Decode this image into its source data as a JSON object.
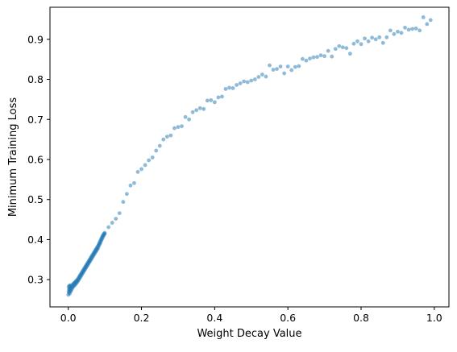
{
  "chart_data": {
    "type": "scatter",
    "title": "",
    "xlabel": "Weight Decay Value",
    "ylabel": "Minimum Training Loss",
    "xlim": [
      -0.05,
      1.04
    ],
    "ylim": [
      0.232,
      0.98
    ],
    "xticks": [
      0.0,
      0.2,
      0.4,
      0.6,
      0.8,
      1.0
    ],
    "xtick_labels": [
      "0.0",
      "0.2",
      "0.4",
      "0.6",
      "0.8",
      "1.0"
    ],
    "yticks": [
      0.3,
      0.4,
      0.5,
      0.6,
      0.7,
      0.8,
      0.9
    ],
    "ytick_labels": [
      "0.3",
      "0.4",
      "0.5",
      "0.6",
      "0.7",
      "0.8",
      "0.9"
    ],
    "grid": false,
    "point_color": "#1f77b4",
    "point_alpha": 0.5,
    "series": [
      {
        "points": [
          [
            0.0,
            0.262
          ],
          [
            0.001,
            0.27
          ],
          [
            0.001,
            0.282
          ],
          [
            0.002,
            0.275
          ],
          [
            0.002,
            0.267
          ],
          [
            0.003,
            0.285
          ],
          [
            0.003,
            0.278
          ],
          [
            0.004,
            0.272
          ],
          [
            0.004,
            0.265
          ],
          [
            0.005,
            0.283
          ],
          [
            0.005,
            0.276
          ],
          [
            0.006,
            0.27
          ],
          [
            0.006,
            0.286
          ],
          [
            0.007,
            0.279
          ],
          [
            0.008,
            0.273
          ],
          [
            0.009,
            0.282
          ],
          [
            0.01,
            0.277
          ],
          [
            0.011,
            0.286
          ],
          [
            0.012,
            0.28
          ],
          [
            0.013,
            0.289
          ],
          [
            0.014,
            0.283
          ],
          [
            0.015,
            0.291
          ],
          [
            0.016,
            0.285
          ],
          [
            0.017,
            0.292
          ],
          [
            0.018,
            0.287
          ],
          [
            0.019,
            0.294
          ],
          [
            0.02,
            0.289
          ],
          [
            0.021,
            0.296
          ],
          [
            0.022,
            0.291
          ],
          [
            0.023,
            0.298
          ],
          [
            0.024,
            0.294
          ],
          [
            0.025,
            0.3
          ],
          [
            0.026,
            0.296
          ],
          [
            0.027,
            0.303
          ],
          [
            0.028,
            0.299
          ],
          [
            0.029,
            0.306
          ],
          [
            0.03,
            0.302
          ],
          [
            0.031,
            0.309
          ],
          [
            0.032,
            0.305
          ],
          [
            0.033,
            0.312
          ],
          [
            0.034,
            0.308
          ],
          [
            0.035,
            0.315
          ],
          [
            0.036,
            0.311
          ],
          [
            0.037,
            0.318
          ],
          [
            0.038,
            0.314
          ],
          [
            0.039,
            0.321
          ],
          [
            0.04,
            0.317
          ],
          [
            0.041,
            0.324
          ],
          [
            0.042,
            0.32
          ],
          [
            0.043,
            0.327
          ],
          [
            0.044,
            0.323
          ],
          [
            0.045,
            0.33
          ],
          [
            0.046,
            0.326
          ],
          [
            0.047,
            0.333
          ],
          [
            0.048,
            0.329
          ],
          [
            0.049,
            0.336
          ],
          [
            0.05,
            0.332
          ],
          [
            0.051,
            0.339
          ],
          [
            0.052,
            0.335
          ],
          [
            0.053,
            0.342
          ],
          [
            0.054,
            0.338
          ],
          [
            0.055,
            0.345
          ],
          [
            0.056,
            0.341
          ],
          [
            0.057,
            0.348
          ],
          [
            0.058,
            0.344
          ],
          [
            0.059,
            0.351
          ],
          [
            0.06,
            0.347
          ],
          [
            0.061,
            0.354
          ],
          [
            0.062,
            0.35
          ],
          [
            0.063,
            0.357
          ],
          [
            0.064,
            0.353
          ],
          [
            0.065,
            0.36
          ],
          [
            0.066,
            0.356
          ],
          [
            0.067,
            0.363
          ],
          [
            0.068,
            0.359
          ],
          [
            0.069,
            0.366
          ],
          [
            0.07,
            0.362
          ],
          [
            0.071,
            0.369
          ],
          [
            0.072,
            0.365
          ],
          [
            0.073,
            0.372
          ],
          [
            0.074,
            0.368
          ],
          [
            0.075,
            0.375
          ],
          [
            0.076,
            0.371
          ],
          [
            0.077,
            0.378
          ],
          [
            0.078,
            0.374
          ],
          [
            0.079,
            0.381
          ],
          [
            0.08,
            0.377
          ],
          [
            0.081,
            0.384
          ],
          [
            0.082,
            0.38
          ],
          [
            0.083,
            0.388
          ],
          [
            0.084,
            0.385
          ],
          [
            0.085,
            0.392
          ],
          [
            0.086,
            0.389
          ],
          [
            0.087,
            0.396
          ],
          [
            0.088,
            0.392
          ],
          [
            0.089,
            0.4
          ],
          [
            0.09,
            0.397
          ],
          [
            0.091,
            0.404
          ],
          [
            0.092,
            0.401
          ],
          [
            0.093,
            0.408
          ],
          [
            0.094,
            0.405
          ],
          [
            0.095,
            0.411
          ],
          [
            0.096,
            0.409
          ],
          [
            0.097,
            0.414
          ],
          [
            0.098,
            0.412
          ],
          [
            0.099,
            0.417
          ],
          [
            0.1,
            0.415
          ],
          [
            0.11,
            0.431
          ],
          [
            0.12,
            0.442
          ],
          [
            0.13,
            0.452
          ],
          [
            0.14,
            0.466
          ],
          [
            0.15,
            0.494
          ],
          [
            0.16,
            0.514
          ],
          [
            0.17,
            0.535
          ],
          [
            0.18,
            0.541
          ],
          [
            0.19,
            0.569
          ],
          [
            0.2,
            0.576
          ],
          [
            0.21,
            0.586
          ],
          [
            0.22,
            0.598
          ],
          [
            0.23,
            0.605
          ],
          [
            0.24,
            0.622
          ],
          [
            0.25,
            0.634
          ],
          [
            0.26,
            0.65
          ],
          [
            0.27,
            0.657
          ],
          [
            0.28,
            0.66
          ],
          [
            0.29,
            0.678
          ],
          [
            0.3,
            0.681
          ],
          [
            0.31,
            0.683
          ],
          [
            0.32,
            0.706
          ],
          [
            0.33,
            0.7
          ],
          [
            0.34,
            0.718
          ],
          [
            0.35,
            0.723
          ],
          [
            0.36,
            0.728
          ],
          [
            0.37,
            0.726
          ],
          [
            0.38,
            0.747
          ],
          [
            0.39,
            0.748
          ],
          [
            0.4,
            0.743
          ],
          [
            0.41,
            0.755
          ],
          [
            0.42,
            0.757
          ],
          [
            0.43,
            0.776
          ],
          [
            0.44,
            0.779
          ],
          [
            0.45,
            0.778
          ],
          [
            0.46,
            0.786
          ],
          [
            0.47,
            0.79
          ],
          [
            0.48,
            0.795
          ],
          [
            0.49,
            0.793
          ],
          [
            0.5,
            0.797
          ],
          [
            0.51,
            0.8
          ],
          [
            0.52,
            0.806
          ],
          [
            0.53,
            0.812
          ],
          [
            0.54,
            0.807
          ],
          [
            0.55,
            0.835
          ],
          [
            0.56,
            0.824
          ],
          [
            0.57,
            0.826
          ],
          [
            0.58,
            0.832
          ],
          [
            0.59,
            0.815
          ],
          [
            0.6,
            0.832
          ],
          [
            0.61,
            0.823
          ],
          [
            0.62,
            0.831
          ],
          [
            0.63,
            0.833
          ],
          [
            0.64,
            0.851
          ],
          [
            0.65,
            0.847
          ],
          [
            0.66,
            0.852
          ],
          [
            0.67,
            0.855
          ],
          [
            0.68,
            0.856
          ],
          [
            0.69,
            0.86
          ],
          [
            0.7,
            0.858
          ],
          [
            0.71,
            0.871
          ],
          [
            0.72,
            0.857
          ],
          [
            0.73,
            0.876
          ],
          [
            0.74,
            0.883
          ],
          [
            0.75,
            0.88
          ],
          [
            0.76,
            0.878
          ],
          [
            0.77,
            0.864
          ],
          [
            0.78,
            0.889
          ],
          [
            0.79,
            0.895
          ],
          [
            0.8,
            0.888
          ],
          [
            0.81,
            0.902
          ],
          [
            0.82,
            0.895
          ],
          [
            0.83,
            0.904
          ],
          [
            0.84,
            0.9
          ],
          [
            0.85,
            0.905
          ],
          [
            0.86,
            0.891
          ],
          [
            0.87,
            0.905
          ],
          [
            0.88,
            0.922
          ],
          [
            0.89,
            0.913
          ],
          [
            0.9,
            0.919
          ],
          [
            0.91,
            0.916
          ],
          [
            0.92,
            0.929
          ],
          [
            0.93,
            0.924
          ],
          [
            0.94,
            0.926
          ],
          [
            0.95,
            0.927
          ],
          [
            0.96,
            0.922
          ],
          [
            0.97,
            0.955
          ],
          [
            0.98,
            0.938
          ],
          [
            0.99,
            0.948
          ]
        ]
      }
    ]
  }
}
